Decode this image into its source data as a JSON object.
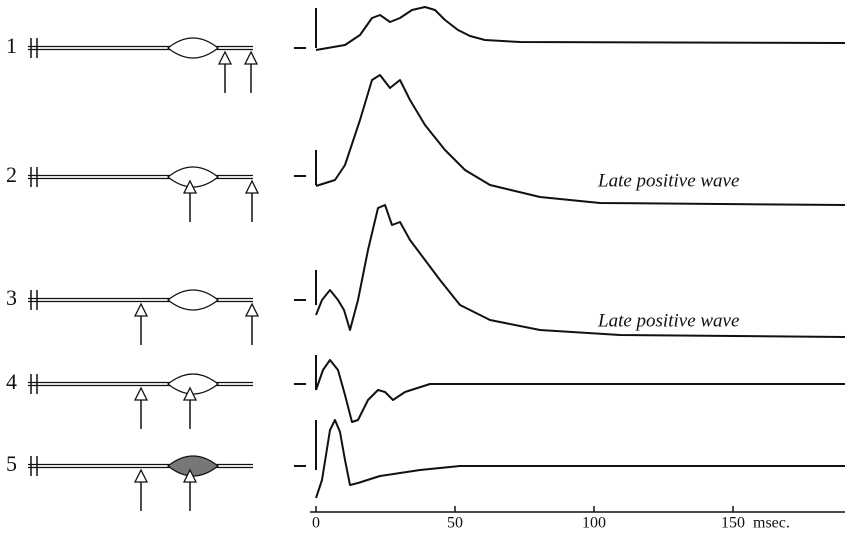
{
  "rows": [
    {
      "label": "1"
    },
    {
      "label": "2",
      "annotation": "Late positive wave"
    },
    {
      "label": "3",
      "annotation": "Late positive wave"
    },
    {
      "label": "4"
    },
    {
      "label": "5"
    }
  ],
  "axis": {
    "ticks": [
      0,
      50,
      100,
      150
    ],
    "unit": "msec."
  }
}
